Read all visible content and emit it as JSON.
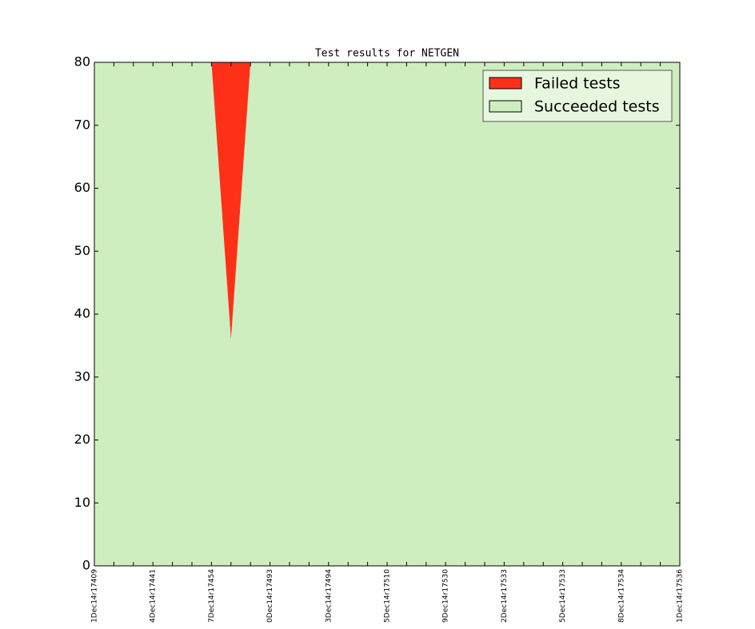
{
  "chart_data": {
    "type": "stacked_area",
    "title": "Test results for NETGEN",
    "categories": [
      "1Dec14r17409",
      null,
      null,
      "4Dec14r17441",
      null,
      null,
      "7Dec14r17454",
      null,
      null,
      "0Dec14r17493",
      null,
      null,
      "3Dec14r17494",
      null,
      null,
      "5Dec14r17510",
      null,
      null,
      "9Dec14r17530",
      null,
      null,
      "2Dec14r17533",
      null,
      null,
      "5Dec14r17533",
      null,
      null,
      "8Dec14r17534",
      null,
      null,
      "1Dec14r17536"
    ],
    "series": [
      {
        "name": "Failed tests",
        "color": "#ff3018",
        "values": [
          0,
          0,
          0,
          0,
          0,
          0,
          0,
          44,
          0,
          0,
          0,
          0,
          0,
          0,
          0,
          0,
          0,
          0,
          0,
          0,
          0,
          0,
          0,
          0,
          0,
          0,
          0,
          0,
          0,
          0,
          0
        ]
      },
      {
        "name": "Succeeded tests",
        "color": "#cfeebf",
        "values": [
          80,
          80,
          80,
          80,
          80,
          80,
          80,
          36,
          80,
          80,
          80,
          80,
          80,
          80,
          80,
          80,
          80,
          80,
          80,
          80,
          80,
          80,
          80,
          80,
          80,
          80,
          80,
          80,
          80,
          80,
          80
        ]
      }
    ],
    "ylim": [
      0,
      80
    ],
    "yticks": [
      0,
      10,
      20,
      30,
      40,
      50,
      60,
      70,
      80
    ],
    "legend": "upper right"
  }
}
